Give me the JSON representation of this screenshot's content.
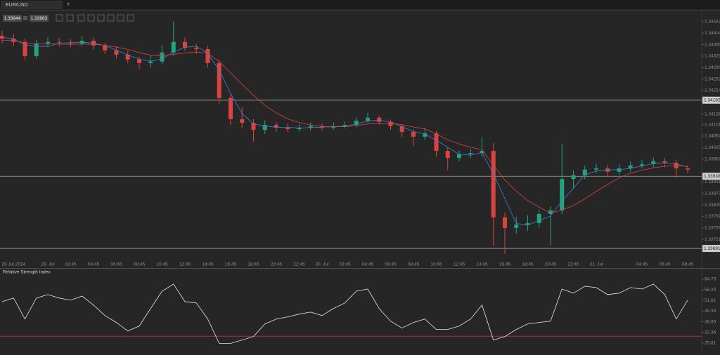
{
  "tab": {
    "title": "EUR/USD"
  },
  "quote": {
    "bid": 1.33944,
    "ask": 1.33963
  },
  "chart_data": [
    {
      "type": "candlestick",
      "categories": [
        null,
        "29 Jul 2014",
        null,
        null,
        "29. Jul",
        null,
        "02:45",
        null,
        "04:45",
        null,
        "06:45",
        null,
        "08:45",
        null,
        "10:45",
        null,
        "12:45",
        null,
        "14:45",
        null,
        "16:45",
        null,
        "18:45",
        null,
        "20:45",
        null,
        "22:45",
        null,
        "30. Jul",
        null,
        "02:45",
        null,
        "04:45",
        null,
        "06:45",
        null,
        "08:45",
        null,
        "10:45",
        null,
        "12:45",
        null,
        "14:45",
        null,
        "16:45",
        null,
        "18:45",
        null,
        "20:45",
        null,
        "22:45",
        null,
        "31. Jul",
        null,
        null,
        null,
        "04:45",
        null,
        "06:45",
        null,
        "08:45"
      ],
      "open": [
        1.34395,
        1.34386,
        1.34375,
        1.34328,
        1.3437,
        1.34375,
        1.34373,
        1.3437,
        1.34379,
        1.34363,
        1.34347,
        1.34333,
        1.34317,
        1.34305,
        1.3431,
        1.3434,
        1.34375,
        1.34356,
        1.34351,
        1.34305,
        1.34189,
        1.34119,
        1.34107,
        1.34084,
        1.341,
        1.34091,
        1.34086,
        1.34091,
        1.34096,
        1.34091,
        1.34096,
        1.341,
        1.34114,
        1.34124,
        1.3411,
        1.34096,
        1.34077,
        1.34061,
        1.34072,
        1.34014,
        1.33991,
        1.34003,
        1.34007,
        1.34014,
        1.33794,
        1.33759,
        1.3377,
        1.33775,
        1.33805,
        1.33817,
        1.33921,
        1.33933,
        1.33952,
        1.33956,
        1.33945,
        1.33956,
        1.33966,
        1.3397,
        1.3398,
        1.33975,
        1.33956
      ],
      "high": [
        1.34412,
        1.344,
        1.34385,
        1.34382,
        1.3439,
        1.34388,
        1.34384,
        1.34395,
        1.3439,
        1.34372,
        1.3436,
        1.34345,
        1.34325,
        1.3433,
        1.34365,
        1.34442,
        1.3439,
        1.34368,
        1.34362,
        1.34315,
        1.342,
        1.3416,
        1.3412,
        1.34115,
        1.3411,
        1.34105,
        1.34102,
        1.34108,
        1.34106,
        1.34108,
        1.34112,
        1.34125,
        1.3414,
        1.3413,
        1.34118,
        1.34102,
        1.34085,
        1.3409,
        1.3408,
        1.34025,
        1.34015,
        1.3402,
        1.3406,
        1.3404,
        1.3381,
        1.33795,
        1.338,
        1.3382,
        1.3383,
        1.34037,
        1.3395,
        1.33965,
        1.33972,
        1.33968,
        1.3397,
        1.3398,
        1.33985,
        1.33992,
        1.3399,
        1.33985,
        1.33965
      ],
      "low": [
        1.3437,
        1.3436,
        1.34315,
        1.3432,
        1.34358,
        1.3436,
        1.34358,
        1.34362,
        1.3435,
        1.34335,
        1.3432,
        1.34305,
        1.34285,
        1.3429,
        1.343,
        1.3433,
        1.34345,
        1.34335,
        1.3429,
        1.3417,
        1.341,
        1.3409,
        1.34045,
        1.3407,
        1.34078,
        1.34075,
        1.34078,
        1.34082,
        1.3408,
        1.34084,
        1.34088,
        1.34092,
        1.34108,
        1.341,
        1.34084,
        1.3406,
        1.3403,
        1.3405,
        1.33995,
        1.3395,
        1.3398,
        1.3399,
        1.33995,
        1.337,
        1.33673,
        1.3374,
        1.3375,
        1.3376,
        1.337,
        1.33805,
        1.3389,
        1.3392,
        1.3394,
        1.3393,
        1.33935,
        1.33945,
        1.33955,
        1.3396,
        1.3396,
        1.33925,
        1.3394
      ],
      "close": [
        1.34386,
        1.34375,
        1.34328,
        1.3437,
        1.34375,
        1.34373,
        1.3437,
        1.34379,
        1.34363,
        1.34347,
        1.34333,
        1.34317,
        1.34305,
        1.3431,
        1.3434,
        1.34375,
        1.34356,
        1.34351,
        1.34305,
        1.34189,
        1.34119,
        1.34107,
        1.34084,
        1.341,
        1.34091,
        1.34086,
        1.34091,
        1.34096,
        1.34091,
        1.34096,
        1.341,
        1.34114,
        1.34124,
        1.3411,
        1.34096,
        1.34077,
        1.34061,
        1.34072,
        1.34014,
        1.33991,
        1.34003,
        1.34007,
        1.34014,
        1.33794,
        1.33759,
        1.3377,
        1.33775,
        1.33805,
        1.33817,
        1.33921,
        1.33933,
        1.33952,
        1.33956,
        1.33945,
        1.33956,
        1.33966,
        1.3397,
        1.3398,
        1.33975,
        1.33956,
        1.33952
      ],
      "up_color": "#23a37c",
      "down_color": "#d9443f",
      "series": [
        {
          "color": "#3d80d6",
          "values": [
            1.3439,
            1.34385,
            1.34365,
            1.3436,
            1.3436,
            1.3437,
            1.34373,
            1.34374,
            1.34371,
            1.34363,
            1.34348,
            1.34332,
            1.34318,
            1.34311,
            1.34318,
            1.34342,
            1.34357,
            1.34361,
            1.34337,
            1.34282,
            1.34204,
            1.34138,
            1.34103,
            1.34097,
            1.34092,
            1.34092,
            1.3409,
            1.34091,
            1.34093,
            1.34094,
            1.34096,
            1.34103,
            1.34113,
            1.34116,
            1.3411,
            1.34094,
            1.34078,
            1.3407,
            1.34049,
            1.34026,
            1.34003,
            1.34,
            1.34008,
            1.33938,
            1.33856,
            1.33774,
            1.33768,
            1.33783,
            1.33799,
            1.33848,
            1.3389,
            1.33935,
            1.33947,
            1.33951,
            1.33952,
            1.33956,
            1.33964,
            1.33972,
            1.33975,
            1.3397,
            1.33961
          ]
        },
        {
          "color": "#d9443f",
          "values": [
            1.3438,
            1.3438,
            1.34372,
            1.34368,
            1.34368,
            1.34368,
            1.34367,
            1.34368,
            1.34367,
            1.34364,
            1.34358,
            1.3435,
            1.3434,
            1.34331,
            1.34329,
            1.34334,
            1.34338,
            1.34342,
            1.34337,
            1.3431,
            1.34272,
            1.34235,
            1.34198,
            1.34165,
            1.3414,
            1.3412,
            1.34108,
            1.341,
            1.34095,
            1.34094,
            1.34094,
            1.34098,
            1.34103,
            1.34106,
            1.34105,
            1.34101,
            1.34093,
            1.34087,
            1.3407,
            1.34051,
            1.34037,
            1.34026,
            1.34018,
            1.33966,
            1.33918,
            1.3388,
            1.3385,
            1.33828,
            1.33808,
            1.33818,
            1.33833,
            1.33855,
            1.3388,
            1.33903,
            1.33925,
            1.3394,
            1.3395,
            1.33958,
            1.33963,
            1.33965,
            1.33963
          ]
        }
      ],
      "ylim": [
        1.33654,
        1.34472
      ],
      "yticks": [
        1.34442,
        1.34404,
        1.34366,
        1.34328,
        {
          "value": 1.3429,
          "label": "1.34290"
        },
        1.34252,
        1.34214,
        1.34136,
        1.34101,
        1.34063,
        1.34025,
        1.33987,
        1.33911,
        1.33873,
        1.33835,
        1.33797,
        1.33759,
        1.33721
      ],
      "levels": [
        1.34182,
        {
          "value": 1.3393,
          "label": "1.33930"
        },
        1.33691
      ]
    },
    {
      "type": "line",
      "title": "Relative Strength Index",
      "values": [
        51.1,
        53.3,
        40.5,
        53.3,
        55.4,
        53.3,
        52.0,
        54.5,
        49.0,
        42.6,
        38.4,
        33.2,
        36.2,
        46.9,
        57.5,
        61.8,
        51.1,
        50.3,
        40.5,
        25.6,
        25.6,
        27.7,
        29.8,
        37.5,
        40.5,
        41.8,
        43.5,
        44.7,
        42.6,
        46.9,
        50.3,
        57.5,
        58.8,
        46.9,
        39.2,
        35.0,
        38.4,
        40.5,
        34.1,
        34.1,
        36.2,
        40.5,
        49.0,
        27.7,
        29.8,
        34.1,
        37.5,
        38.4,
        39.2,
        58.8,
        56.3,
        60.5,
        59.7,
        55.4,
        56.3,
        59.7,
        58.8,
        61.8,
        55.4,
        40.5,
        52.0
      ],
      "color": "#e6e6e6",
      "ylim": [
        19.4,
        68.2
      ],
      "yticks": [
        64.78,
        58.29,
        51.81,
        45.33,
        38.85,
        32.36,
        25.81
      ],
      "hline": 30,
      "hline_color": "#b0322e"
    }
  ]
}
